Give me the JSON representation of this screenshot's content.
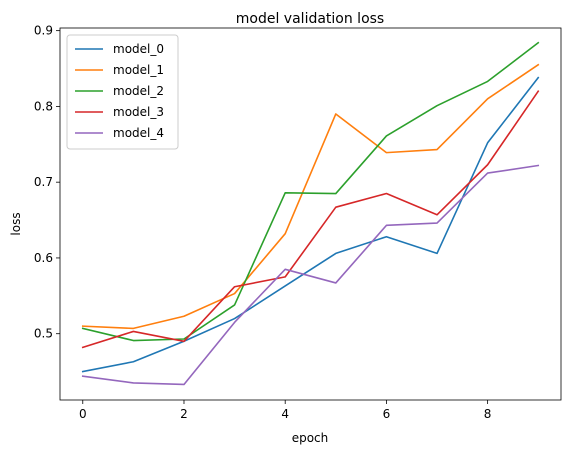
{
  "chart_data": {
    "type": "line",
    "title": "model validation loss",
    "xlabel": "epoch",
    "ylabel": "loss",
    "xlim": [
      -0.45,
      9.45
    ],
    "ylim": [
      0.4125,
      0.9035
    ],
    "x_ticks": [
      0,
      2,
      4,
      6,
      8
    ],
    "y_ticks": [
      0.5,
      0.6,
      0.7,
      0.8,
      0.9
    ],
    "x_tick_labels": [
      "0",
      "2",
      "4",
      "6",
      "8"
    ],
    "y_tick_labels": [
      "0.5",
      "0.6",
      "0.7",
      "0.8",
      "0.9"
    ],
    "grid": false,
    "legend_position": "upper-left",
    "x": [
      0,
      1,
      2,
      3,
      4,
      5,
      6,
      7,
      8,
      9
    ],
    "series": [
      {
        "name": "model_0",
        "color": "#1f77b4",
        "values": [
          0.45,
          0.463,
          0.49,
          0.52,
          0.563,
          0.606,
          0.628,
          0.606,
          0.752,
          0.838
        ]
      },
      {
        "name": "model_1",
        "color": "#ff7f0e",
        "values": [
          0.51,
          0.507,
          0.523,
          0.553,
          0.632,
          0.79,
          0.739,
          0.743,
          0.81,
          0.855
        ]
      },
      {
        "name": "model_2",
        "color": "#2ca02c",
        "values": [
          0.507,
          0.491,
          0.493,
          0.538,
          0.686,
          0.685,
          0.761,
          0.801,
          0.833,
          0.884
        ]
      },
      {
        "name": "model_3",
        "color": "#d62728",
        "values": [
          0.482,
          0.503,
          0.49,
          0.562,
          0.575,
          0.667,
          0.685,
          0.657,
          0.723,
          0.82
        ]
      },
      {
        "name": "model_4",
        "color": "#9467bd",
        "values": [
          0.444,
          0.435,
          0.433,
          0.515,
          0.585,
          0.567,
          0.643,
          0.646,
          0.712,
          0.722
        ]
      }
    ]
  }
}
